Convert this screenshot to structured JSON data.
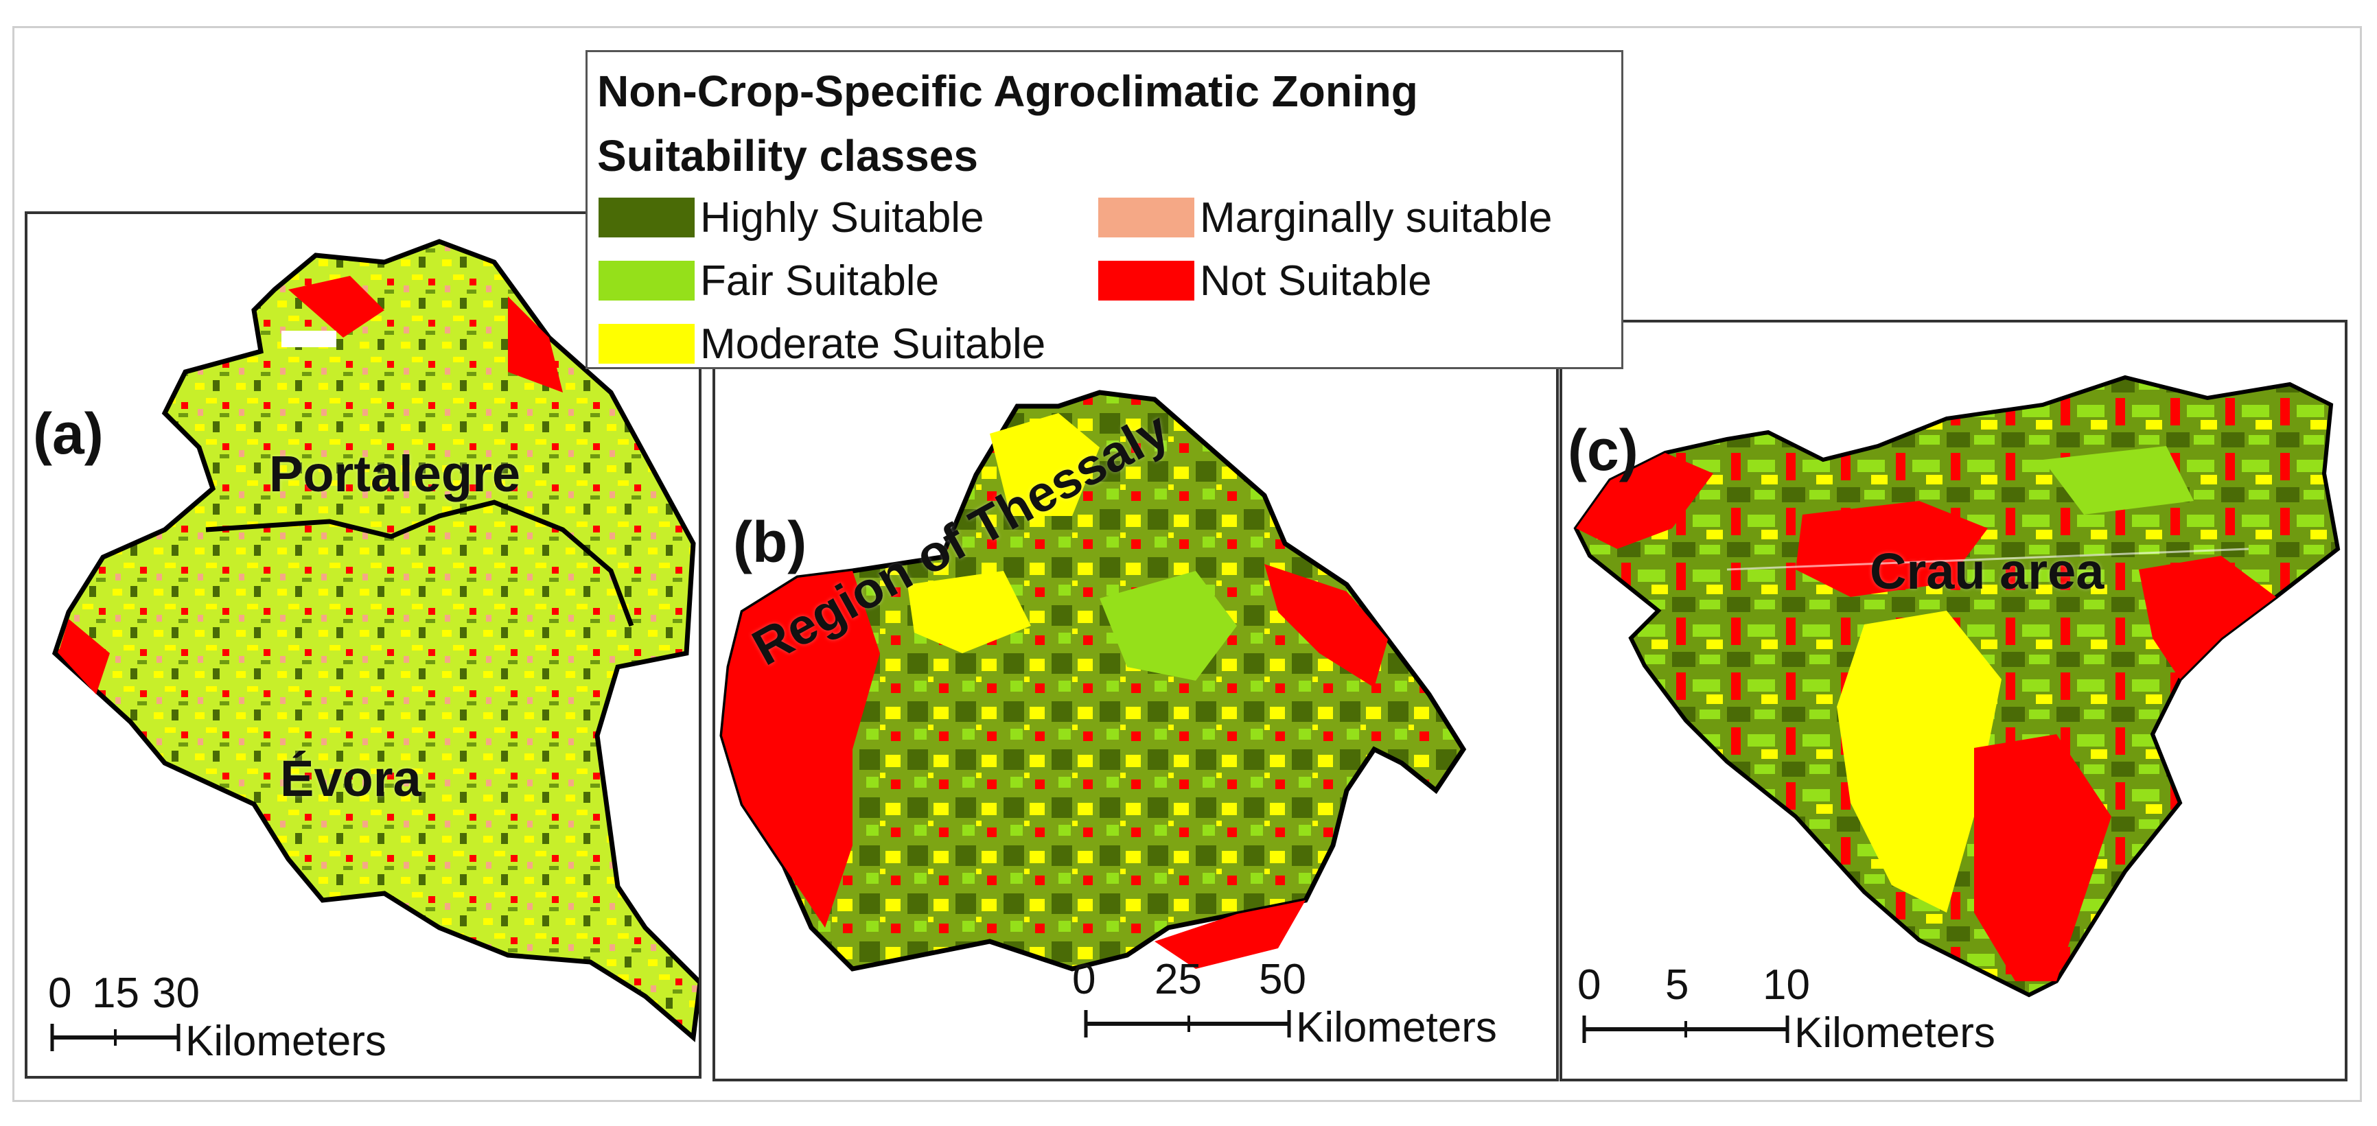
{
  "legend": {
    "title": "Non-Crop-Specific Agroclimatic Zoning",
    "subtitle": "Suitability classes",
    "classes": [
      {
        "label": "Highly Suitable",
        "color": "#4a6b06"
      },
      {
        "label": "Fair Suitable",
        "color": "#95e01a"
      },
      {
        "label": "Moderate Suitable",
        "color": "#ffff00"
      },
      {
        "label": "Marginally suitable",
        "color": "#f5a886"
      },
      {
        "label": "Not Suitable",
        "color": "#ff0000"
      }
    ]
  },
  "panels": {
    "a": {
      "letter": "(a)",
      "regions": [
        "Portalegre",
        "Évora"
      ],
      "scale": {
        "ticks": [
          "0",
          "15",
          "30"
        ],
        "unit": "Kilometers"
      }
    },
    "b": {
      "letter": "(b)",
      "region": "Region of Thessaly",
      "scale": {
        "ticks": [
          "0",
          "25",
          "50"
        ],
        "unit": "Kilometers"
      }
    },
    "c": {
      "letter": "(c)",
      "region": "Crau area",
      "scale": {
        "ticks": [
          "0",
          "5",
          "10"
        ],
        "unit": "Kilometers"
      }
    }
  }
}
